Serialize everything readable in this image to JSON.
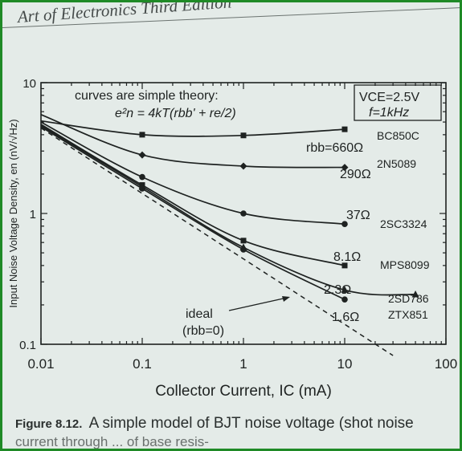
{
  "page_header": "Art of Electronics Third Edition",
  "caption": {
    "label": "Figure 8.12.",
    "text": "A simple model of BJT noise voltage (shot noise",
    "text2": "current through ... of base resis-"
  },
  "colors": {
    "ink": "#1e2221",
    "paper": "#e4ebe8",
    "frame": "#1f8a26"
  },
  "chart_data": {
    "type": "line",
    "xscale": "log",
    "yscale": "log",
    "xlim": [
      0.01,
      100
    ],
    "ylim": [
      0.1,
      10
    ],
    "xlabel": "Collector Current, IC (mA)",
    "ylabel": "Input Noise Voltage Density, en (nV/√Hz)",
    "x_ticks": [
      "0.01",
      "0.1",
      "1",
      "10",
      "100"
    ],
    "y_ticks": [
      "10",
      "1",
      "0.1"
    ],
    "grid": false,
    "annotation_lines": [
      "curves are simple theory:",
      "e²n = 4kT(rbb' + re/2)"
    ],
    "conditions": [
      "VCE=2.5V",
      "f=1kHz"
    ],
    "series": [
      {
        "name": "BC850C",
        "rbb_label": "rbb=660Ω",
        "rbb": 660,
        "marker": "square",
        "points": [
          {
            "x": 0.01,
            "y": 5.1
          },
          {
            "x": 0.1,
            "y": 4.0
          },
          {
            "x": 1,
            "y": 3.95
          },
          {
            "x": 10,
            "y": 4.4
          }
        ]
      },
      {
        "name": "2N5089",
        "rbb_label": "290Ω",
        "rbb": 290,
        "marker": "diamond",
        "points": [
          {
            "x": 0.01,
            "y": 5.7
          },
          {
            "x": 0.1,
            "y": 2.8
          },
          {
            "x": 1,
            "y": 2.3
          },
          {
            "x": 10,
            "y": 2.25
          }
        ]
      },
      {
        "name": "2SC3324",
        "rbb_label": "37Ω",
        "rbb": 37,
        "marker": "circle",
        "points": [
          {
            "x": 0.01,
            "y": 5.0
          },
          {
            "x": 0.1,
            "y": 1.9
          },
          {
            "x": 1,
            "y": 1.0
          },
          {
            "x": 10,
            "y": 0.83
          }
        ]
      },
      {
        "name": "MPS8099",
        "rbb_label": "8.1Ω",
        "rbb": 8.1,
        "marker": "square",
        "points": [
          {
            "x": 0.01,
            "y": 4.8
          },
          {
            "x": 0.1,
            "y": 1.65
          },
          {
            "x": 1,
            "y": 0.62
          },
          {
            "x": 10,
            "y": 0.4
          }
        ]
      },
      {
        "name": "2SD786",
        "rbb_label": "2.3Ω",
        "rbb": 2.3,
        "marker": "triangle",
        "points": [
          {
            "x": 0.01,
            "y": 4.7
          },
          {
            "x": 0.1,
            "y": 1.6
          },
          {
            "x": 1,
            "y": 0.55
          },
          {
            "x": 10,
            "y": 0.26
          },
          {
            "x": 50,
            "y": 0.24
          }
        ]
      },
      {
        "name": "ZTX851",
        "rbb_label": "1.6Ω",
        "rbb": 1.6,
        "marker": "circle",
        "points": [
          {
            "x": 0.01,
            "y": 4.6
          },
          {
            "x": 0.1,
            "y": 1.55
          },
          {
            "x": 1,
            "y": 0.53
          },
          {
            "x": 10,
            "y": 0.22
          }
        ]
      }
    ],
    "ideal": {
      "label": "ideal",
      "label2": "(rbb=0)",
      "style": "dashed",
      "points": [
        {
          "x": 0.01,
          "y": 4.5
        },
        {
          "x": 30,
          "y": 0.082
        }
      ]
    }
  }
}
